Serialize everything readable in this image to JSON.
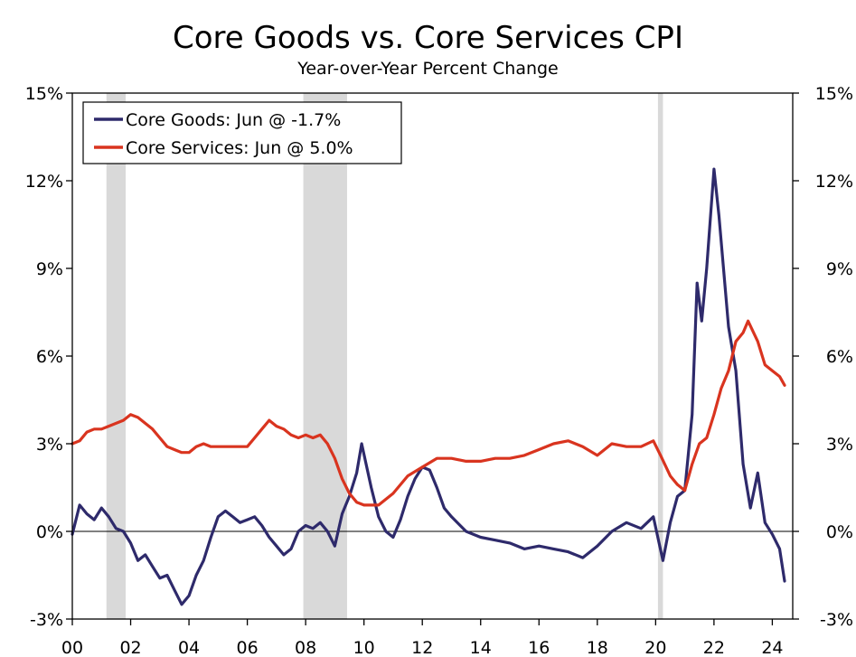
{
  "chart_data": {
    "type": "line",
    "title": "Core Goods vs. Core Services CPI",
    "subtitle": "Year-over-Year Percent Change",
    "xlabel": "",
    "ylabel": "",
    "xlim": [
      2000.0,
      2024.7
    ],
    "ylim": [
      -3,
      15
    ],
    "y_ticks": [
      -3,
      0,
      3,
      6,
      9,
      12,
      15
    ],
    "y_tick_labels": [
      "-3%",
      "0%",
      "3%",
      "6%",
      "9%",
      "12%",
      "15%"
    ],
    "x_ticks": [
      2000,
      2002,
      2004,
      2006,
      2008,
      2010,
      2012,
      2014,
      2016,
      2018,
      2020,
      2022,
      2024
    ],
    "x_tick_labels": [
      "00",
      "02",
      "04",
      "06",
      "08",
      "10",
      "12",
      "14",
      "16",
      "18",
      "20",
      "22",
      "24"
    ],
    "secondary_y_axis": true,
    "zero_line": true,
    "grid": false,
    "legend_position": "top-left",
    "recession_shading": [
      [
        2001.17,
        2001.83
      ],
      [
        2007.92,
        2009.42
      ],
      [
        2020.08,
        2020.25
      ]
    ],
    "recession_color": "#d9d9d9",
    "series": [
      {
        "name": "Core Goods: Jun @ -1.7%",
        "color": "#2e2a6b",
        "x": [
          2000.0,
          2000.25,
          2000.5,
          2000.75,
          2001.0,
          2001.25,
          2001.5,
          2001.75,
          2002.0,
          2002.25,
          2002.5,
          2002.75,
          2003.0,
          2003.25,
          2003.5,
          2003.75,
          2004.0,
          2004.25,
          2004.5,
          2004.75,
          2005.0,
          2005.25,
          2005.5,
          2005.75,
          2006.0,
          2006.25,
          2006.5,
          2006.75,
          2007.0,
          2007.25,
          2007.5,
          2007.75,
          2008.0,
          2008.25,
          2008.5,
          2008.75,
          2009.0,
          2009.25,
          2009.5,
          2009.75,
          2009.92,
          2010.25,
          2010.5,
          2010.75,
          2011.0,
          2011.25,
          2011.5,
          2011.75,
          2012.0,
          2012.25,
          2012.5,
          2012.75,
          2013.0,
          2013.5,
          2014.0,
          2014.5,
          2015.0,
          2015.5,
          2016.0,
          2016.5,
          2017.0,
          2017.5,
          2018.0,
          2018.5,
          2019.0,
          2019.5,
          2019.92,
          2020.25,
          2020.5,
          2020.75,
          2021.0,
          2021.25,
          2021.42,
          2021.58,
          2021.75,
          2022.0,
          2022.17,
          2022.5,
          2022.75,
          2023.0,
          2023.25,
          2023.5,
          2023.75,
          2024.0,
          2024.25,
          2024.42
        ],
        "values": [
          -0.1,
          0.9,
          0.6,
          0.4,
          0.8,
          0.5,
          0.1,
          0.0,
          -0.4,
          -1.0,
          -0.8,
          -1.2,
          -1.6,
          -1.5,
          -2.0,
          -2.5,
          -2.2,
          -1.5,
          -1.0,
          -0.2,
          0.5,
          0.7,
          0.5,
          0.3,
          0.4,
          0.5,
          0.2,
          -0.2,
          -0.5,
          -0.8,
          -0.6,
          0.0,
          0.2,
          0.1,
          0.3,
          0.0,
          -0.5,
          0.6,
          1.2,
          2.0,
          3.0,
          1.5,
          0.5,
          0.0,
          -0.2,
          0.4,
          1.2,
          1.8,
          2.2,
          2.1,
          1.5,
          0.8,
          0.5,
          0.0,
          -0.2,
          -0.3,
          -0.4,
          -0.6,
          -0.5,
          -0.6,
          -0.7,
          -0.9,
          -0.5,
          0.0,
          0.3,
          0.1,
          0.5,
          -1.0,
          0.3,
          1.2,
          1.4,
          4.0,
          8.5,
          7.2,
          9.0,
          12.4,
          10.8,
          7.0,
          5.5,
          2.3,
          0.8,
          2.0,
          0.3,
          -0.1,
          -0.6,
          -1.7
        ]
      },
      {
        "name": "Core Services: Jun @ 5.0%",
        "color": "#d9341f",
        "x": [
          2000.0,
          2000.25,
          2000.5,
          2000.75,
          2001.0,
          2001.25,
          2001.5,
          2001.75,
          2002.0,
          2002.25,
          2002.5,
          2002.75,
          2003.0,
          2003.25,
          2003.5,
          2003.75,
          2004.0,
          2004.25,
          2004.5,
          2004.75,
          2005.0,
          2005.5,
          2006.0,
          2006.25,
          2006.5,
          2006.75,
          2007.0,
          2007.25,
          2007.5,
          2007.75,
          2008.0,
          2008.25,
          2008.5,
          2008.75,
          2009.0,
          2009.25,
          2009.5,
          2009.75,
          2010.0,
          2010.5,
          2011.0,
          2011.5,
          2012.0,
          2012.5,
          2013.0,
          2013.5,
          2014.0,
          2014.5,
          2015.0,
          2015.5,
          2016.0,
          2016.5,
          2017.0,
          2017.5,
          2018.0,
          2018.5,
          2019.0,
          2019.5,
          2019.92,
          2020.17,
          2020.5,
          2020.75,
          2021.0,
          2021.25,
          2021.5,
          2021.75,
          2022.0,
          2022.25,
          2022.5,
          2022.75,
          2023.0,
          2023.17,
          2023.5,
          2023.75,
          2024.0,
          2024.25,
          2024.42
        ],
        "values": [
          3.0,
          3.1,
          3.4,
          3.5,
          3.5,
          3.6,
          3.7,
          3.8,
          4.0,
          3.9,
          3.7,
          3.5,
          3.2,
          2.9,
          2.8,
          2.7,
          2.7,
          2.9,
          3.0,
          2.9,
          2.9,
          2.9,
          2.9,
          3.2,
          3.5,
          3.8,
          3.6,
          3.5,
          3.3,
          3.2,
          3.3,
          3.2,
          3.3,
          3.0,
          2.5,
          1.8,
          1.3,
          1.0,
          0.9,
          0.9,
          1.3,
          1.9,
          2.2,
          2.5,
          2.5,
          2.4,
          2.4,
          2.5,
          2.5,
          2.6,
          2.8,
          3.0,
          3.1,
          2.9,
          2.6,
          3.0,
          2.9,
          2.9,
          3.1,
          2.6,
          1.9,
          1.6,
          1.4,
          2.3,
          3.0,
          3.2,
          4.0,
          4.9,
          5.5,
          6.5,
          6.8,
          7.2,
          6.5,
          5.7,
          5.5,
          5.3,
          5.0
        ]
      }
    ]
  }
}
